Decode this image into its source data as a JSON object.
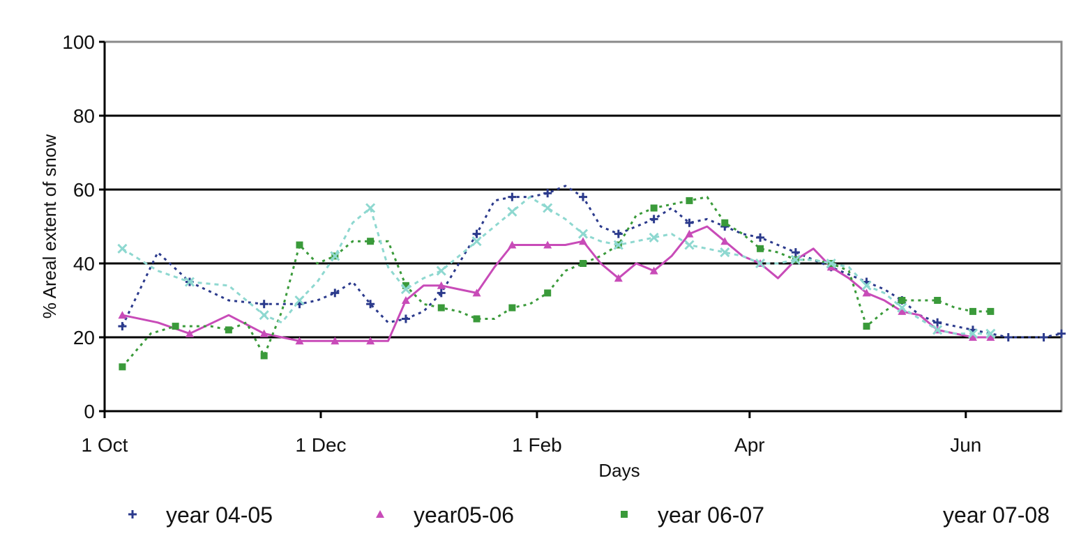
{
  "chart_data": {
    "type": "line",
    "title": "",
    "xlabel": "Days",
    "ylabel": "% Areal extent of snow",
    "ylim": [
      0,
      100
    ],
    "xlim": [
      0,
      270
    ],
    "yticks": [
      0,
      20,
      40,
      60,
      80,
      100
    ],
    "xticks": [
      {
        "x": 0,
        "label": "1 Oct"
      },
      {
        "x": 61,
        "label": "1 Dec"
      },
      {
        "x": 122,
        "label": "1 Feb"
      },
      {
        "x": 182,
        "label": "Apr"
      },
      {
        "x": 243,
        "label": "Jun"
      }
    ],
    "grid": true,
    "legend_position": "bottom",
    "series": [
      {
        "name": "year 04-05",
        "color": "#2b3a8c",
        "marker": "plus",
        "dash": "4,6",
        "x": [
          5,
          15,
          24,
          35,
          45,
          50,
          55,
          60,
          65,
          70,
          75,
          80,
          85,
          90,
          95,
          100,
          105,
          110,
          115,
          120,
          125,
          130,
          135,
          140,
          145,
          150,
          155,
          160,
          165,
          170,
          175,
          180,
          185,
          190,
          195,
          200,
          205,
          210,
          215,
          220,
          225,
          230,
          235,
          240,
          245,
          250,
          255,
          260,
          265,
          270
        ],
        "y": [
          23,
          43,
          35,
          30,
          29,
          29,
          29,
          30,
          32,
          35,
          29,
          24,
          25,
          27,
          32,
          40,
          48,
          57,
          58,
          58,
          59,
          61,
          58,
          50,
          48,
          50,
          52,
          55,
          51,
          52,
          50,
          48,
          47,
          45,
          43,
          41,
          39,
          37,
          35,
          33,
          30,
          26,
          24,
          23,
          22,
          21,
          20,
          20,
          20,
          21
        ]
      },
      {
        "name": "year05-06",
        "color": "#c84bb8",
        "marker": "triangle",
        "dash": "",
        "x": [
          5,
          15,
          24,
          35,
          45,
          50,
          55,
          60,
          65,
          70,
          75,
          80,
          85,
          90,
          95,
          100,
          105,
          110,
          115,
          120,
          125,
          130,
          135,
          140,
          145,
          150,
          155,
          160,
          165,
          170,
          175,
          180,
          185,
          190,
          195,
          200,
          205,
          210,
          215,
          220,
          225,
          230,
          235,
          240,
          245,
          250
        ],
        "y": [
          26,
          24,
          21,
          26,
          21,
          20,
          19,
          19,
          19,
          19,
          19,
          19,
          30,
          34,
          34,
          33,
          32,
          39,
          45,
          45,
          45,
          45,
          46,
          40,
          36,
          40,
          38,
          42,
          48,
          50,
          46,
          42,
          40,
          36,
          41,
          44,
          39,
          36,
          32,
          30,
          27,
          26,
          22,
          21,
          20,
          20
        ]
      },
      {
        "name": "year 06-07",
        "color": "#3a9a3a",
        "marker": "square",
        "dash": "4,6",
        "x": [
          5,
          13,
          20,
          30,
          35,
          40,
          45,
          50,
          55,
          60,
          65,
          70,
          75,
          80,
          85,
          90,
          95,
          100,
          105,
          110,
          115,
          120,
          125,
          130,
          135,
          140,
          145,
          150,
          155,
          160,
          165,
          170,
          175,
          180,
          185,
          190,
          195,
          200,
          205,
          210,
          215,
          220,
          225,
          230,
          235,
          240,
          245,
          250
        ],
        "y": [
          12,
          21,
          23,
          23,
          22,
          24,
          15,
          27,
          45,
          40,
          42,
          46,
          46,
          46,
          34,
          29,
          28,
          27,
          25,
          25,
          28,
          29,
          32,
          38,
          40,
          42,
          45,
          53,
          55,
          56,
          57,
          58,
          51,
          48,
          44,
          43,
          41,
          41,
          40,
          38,
          23,
          27,
          30,
          30,
          30,
          28,
          27,
          27
        ]
      },
      {
        "name": "year 07-08",
        "color": "#8ed8d0",
        "marker": "cross",
        "dash": "6,6",
        "x": [
          5,
          15,
          24,
          35,
          45,
          50,
          55,
          60,
          65,
          70,
          75,
          80,
          85,
          90,
          95,
          100,
          105,
          110,
          115,
          120,
          125,
          130,
          135,
          140,
          145,
          150,
          155,
          160,
          165,
          170,
          175,
          180,
          185,
          190,
          195,
          200,
          205,
          210,
          215,
          220,
          225,
          230,
          235,
          240,
          245,
          250
        ],
        "y": [
          44,
          38,
          35,
          34,
          26,
          24,
          30,
          35,
          42,
          51,
          55,
          39,
          33,
          36,
          38,
          42,
          46,
          50,
          54,
          58,
          55,
          52,
          48,
          46,
          45,
          46,
          47,
          48,
          45,
          44,
          43,
          42,
          40,
          40,
          41,
          41,
          40,
          39,
          34,
          32,
          28,
          25,
          22,
          21,
          21,
          21
        ]
      }
    ]
  }
}
